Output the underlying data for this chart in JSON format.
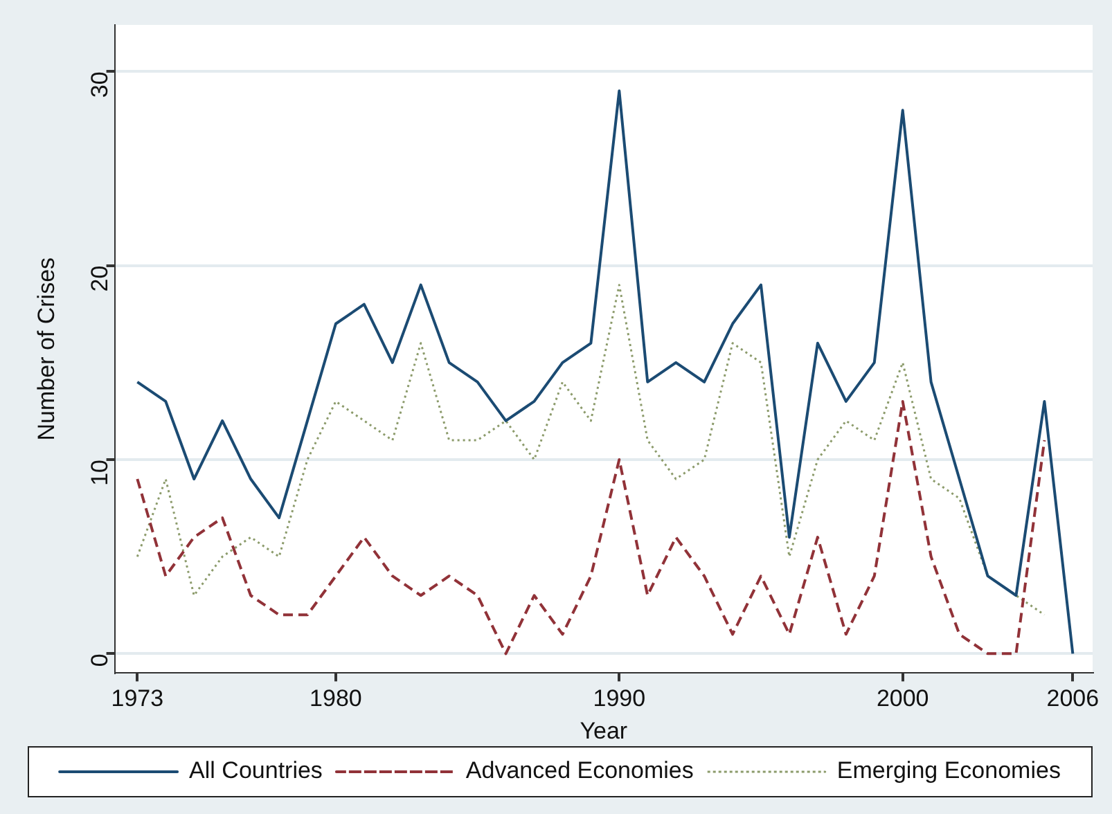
{
  "chart_data": {
    "type": "line",
    "xlabel": "Year",
    "ylabel": "Number of Crises",
    "x": [
      1973,
      1974,
      1975,
      1976,
      1977,
      1978,
      1979,
      1980,
      1981,
      1982,
      1983,
      1984,
      1985,
      1986,
      1987,
      1988,
      1989,
      1990,
      1991,
      1992,
      1993,
      1994,
      1995,
      1996,
      1997,
      1998,
      1999,
      2000,
      2001,
      2002,
      2003,
      2004,
      2005,
      2006
    ],
    "series": [
      {
        "name": "All Countries",
        "color": "#1b4b73",
        "line_style": "solid",
        "values": [
          14,
          13,
          9,
          12,
          9,
          7,
          12,
          17,
          18,
          15,
          19,
          15,
          14,
          12,
          13,
          15,
          16,
          29,
          14,
          15,
          14,
          17,
          19,
          6,
          16,
          13,
          15,
          28,
          14,
          9,
          4,
          3,
          13,
          0
        ]
      },
      {
        "name": "Advanced Economies",
        "color": "#913238",
        "line_style": "dashed",
        "values": [
          9,
          4,
          6,
          7,
          3,
          2,
          2,
          4,
          6,
          4,
          3,
          4,
          3,
          0,
          3,
          1,
          4,
          10,
          3,
          6,
          4,
          1,
          4,
          1,
          6,
          1,
          4,
          13,
          5,
          1,
          0,
          0,
          11,
          null
        ]
      },
      {
        "name": "Emerging Economies",
        "color": "#8c9b6b",
        "line_style": "dotted",
        "values": [
          5,
          9,
          3,
          5,
          6,
          5,
          10,
          13,
          12,
          11,
          16,
          11,
          11,
          12,
          10,
          14,
          12,
          19,
          11,
          9,
          10,
          16,
          15,
          5,
          10,
          12,
          11,
          15,
          9,
          8,
          4,
          3,
          2,
          null
        ]
      }
    ],
    "xlim": [
      1972.2,
      2006.7
    ],
    "xticks": [
      1973,
      1980,
      1990,
      2000,
      2006
    ],
    "ylim": [
      -1,
      32.4
    ],
    "yticks": [
      0,
      10,
      20,
      30
    ],
    "grid": "y",
    "legend": "bottom",
    "marker": "none"
  }
}
